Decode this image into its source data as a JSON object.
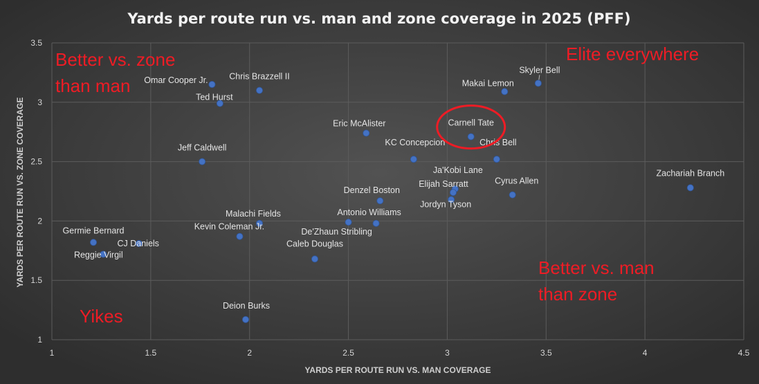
{
  "chart_data": {
    "type": "scatter",
    "title": "Yards per route run vs. man and zone coverage in 2025 (PFF)",
    "xlabel": "YARDS PER ROUTE RUN VS. MAN COVERAGE",
    "ylabel": "YARDS PER ROUTE RUN VS. ZONE COVERAGE",
    "xlim": [
      1,
      4.5
    ],
    "ylim": [
      1,
      3.5
    ],
    "xticks": [
      "1",
      "1.5",
      "2",
      "2.5",
      "3",
      "3.5",
      "4",
      "4.5"
    ],
    "yticks": [
      "1",
      "1.5",
      "2",
      "2.5",
      "3",
      "3.5"
    ],
    "grid": true,
    "point_color": "#4472c4",
    "highlight_color": "#ee1c25",
    "points": [
      {
        "label": "Skyler Bell",
        "x": 3.46,
        "y": 3.16
      },
      {
        "label": "Makai Lemon",
        "x": 3.29,
        "y": 3.09
      },
      {
        "label": "Carnell Tate",
        "x": 3.12,
        "y": 2.71
      },
      {
        "label": "Chris Bell",
        "x": 3.25,
        "y": 2.52
      },
      {
        "label": "Ja'Kobi Lane",
        "x": 3.04,
        "y": 2.27
      },
      {
        "label": "Elijah Sarratt",
        "x": 3.03,
        "y": 2.24
      },
      {
        "label": "Jordyn Tyson",
        "x": 3.02,
        "y": 2.18
      },
      {
        "label": "Cyrus Allen",
        "x": 3.33,
        "y": 2.22
      },
      {
        "label": "Zachariah Branch",
        "x": 4.23,
        "y": 2.28
      },
      {
        "label": "Omar Cooper Jr.",
        "x": 1.81,
        "y": 3.15
      },
      {
        "label": "Chris Brazzell II",
        "x": 2.05,
        "y": 3.1
      },
      {
        "label": "Ted Hurst",
        "x": 1.85,
        "y": 2.99
      },
      {
        "label": "Eric McAlister",
        "x": 2.59,
        "y": 2.74
      },
      {
        "label": "KC Concepcion",
        "x": 2.83,
        "y": 2.52
      },
      {
        "label": "Jeff Caldwell",
        "x": 1.76,
        "y": 2.5
      },
      {
        "label": "Denzel Boston",
        "x": 2.66,
        "y": 2.17
      },
      {
        "label": "Malachi Fields",
        "x": 2.05,
        "y": 1.98
      },
      {
        "label": "Antonio Williams",
        "x": 2.5,
        "y": 1.99
      },
      {
        "label": "De'Zhaun Stribling",
        "x": 2.64,
        "y": 1.98
      },
      {
        "label": "Kevin Coleman Jr.",
        "x": 1.95,
        "y": 1.87
      },
      {
        "label": "Caleb Douglas",
        "x": 2.33,
        "y": 1.68
      },
      {
        "label": "Germie Bernard",
        "x": 1.21,
        "y": 1.82
      },
      {
        "label": "CJ Daniels",
        "x": 1.44,
        "y": 1.81
      },
      {
        "label": "Reggie Virgil",
        "x": 1.26,
        "y": 1.72
      },
      {
        "label": "Deion Burks",
        "x": 1.98,
        "y": 1.17
      }
    ],
    "highlighted_point": "Carnell Tate",
    "annotations": [
      {
        "lines": [
          "Better vs. zone",
          "than man"
        ]
      },
      {
        "lines": [
          "Elite everywhere"
        ]
      },
      {
        "lines": [
          "Better vs. man",
          "than zone"
        ]
      },
      {
        "lines": [
          "Yikes"
        ]
      }
    ]
  }
}
